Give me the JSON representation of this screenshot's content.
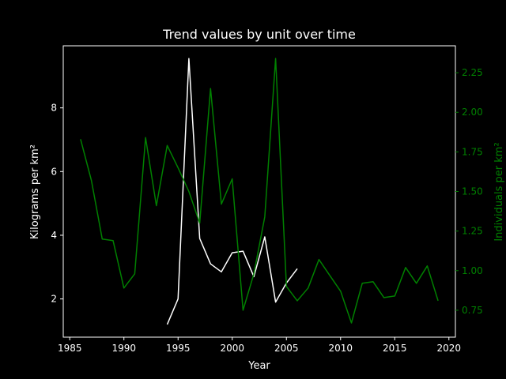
{
  "chart_data": {
    "type": "line",
    "title": "Trend values by unit over time",
    "xlabel": "Year",
    "ylabel_left": "Kilograms per km²",
    "ylabel_right": "Individuals per km²",
    "xlim": [
      1984.4,
      2020.6
    ],
    "ylim_left": [
      0.8,
      9.95
    ],
    "ylim_right": [
      0.58,
      2.42
    ],
    "x_ticks": [
      1985,
      1990,
      1995,
      2000,
      2005,
      2010,
      2015,
      2020
    ],
    "y_left_ticks": [
      2,
      4,
      6,
      8
    ],
    "y_right_ticks": [
      0.75,
      1.0,
      1.25,
      1.5,
      1.75,
      2.0,
      2.25
    ],
    "x_tick_labels": [
      "1985",
      "1990",
      "1995",
      "2000",
      "2005",
      "2010",
      "2015",
      "2020"
    ],
    "y_left_tick_labels": [
      "2",
      "4",
      "6",
      "8"
    ],
    "y_right_tick_labels": [
      "0.75",
      "1.00",
      "1.25",
      "1.50",
      "1.75",
      "2.00",
      "2.25"
    ],
    "grid": false,
    "legend": "none",
    "series": [
      {
        "axis": "left",
        "color": "#ffffff",
        "x": [
          1994,
          1995,
          1996,
          1997,
          1998,
          1999,
          2000,
          2001,
          2002,
          2003,
          2004,
          2005,
          2006
        ],
        "values": [
          1.2,
          2.0,
          9.55,
          3.9,
          3.1,
          2.85,
          3.45,
          3.5,
          2.7,
          3.95,
          1.9,
          2.5,
          2.95
        ]
      },
      {
        "axis": "right",
        "color": "#008000",
        "x": [
          1986,
          1987,
          1988,
          1989,
          1990,
          1991,
          1992,
          1993,
          1994,
          1995,
          1996,
          1997,
          1998,
          1999,
          2000,
          2001,
          2002,
          2003,
          2004,
          2005,
          2006,
          2007,
          2008,
          2009,
          2010,
          2011,
          2012,
          2013,
          2014,
          2015,
          2016,
          2017,
          2018,
          2019
        ],
        "values": [
          1.83,
          1.57,
          1.2,
          1.19,
          0.89,
          0.98,
          1.84,
          1.41,
          1.79,
          1.65,
          1.5,
          1.3,
          2.15,
          1.42,
          1.58,
          0.75,
          0.98,
          1.34,
          2.34,
          0.9,
          0.81,
          0.89,
          1.07,
          0.97,
          0.87,
          0.67,
          0.92,
          0.93,
          0.83,
          0.84,
          1.02,
          0.92,
          1.03,
          0.81
        ]
      }
    ]
  }
}
